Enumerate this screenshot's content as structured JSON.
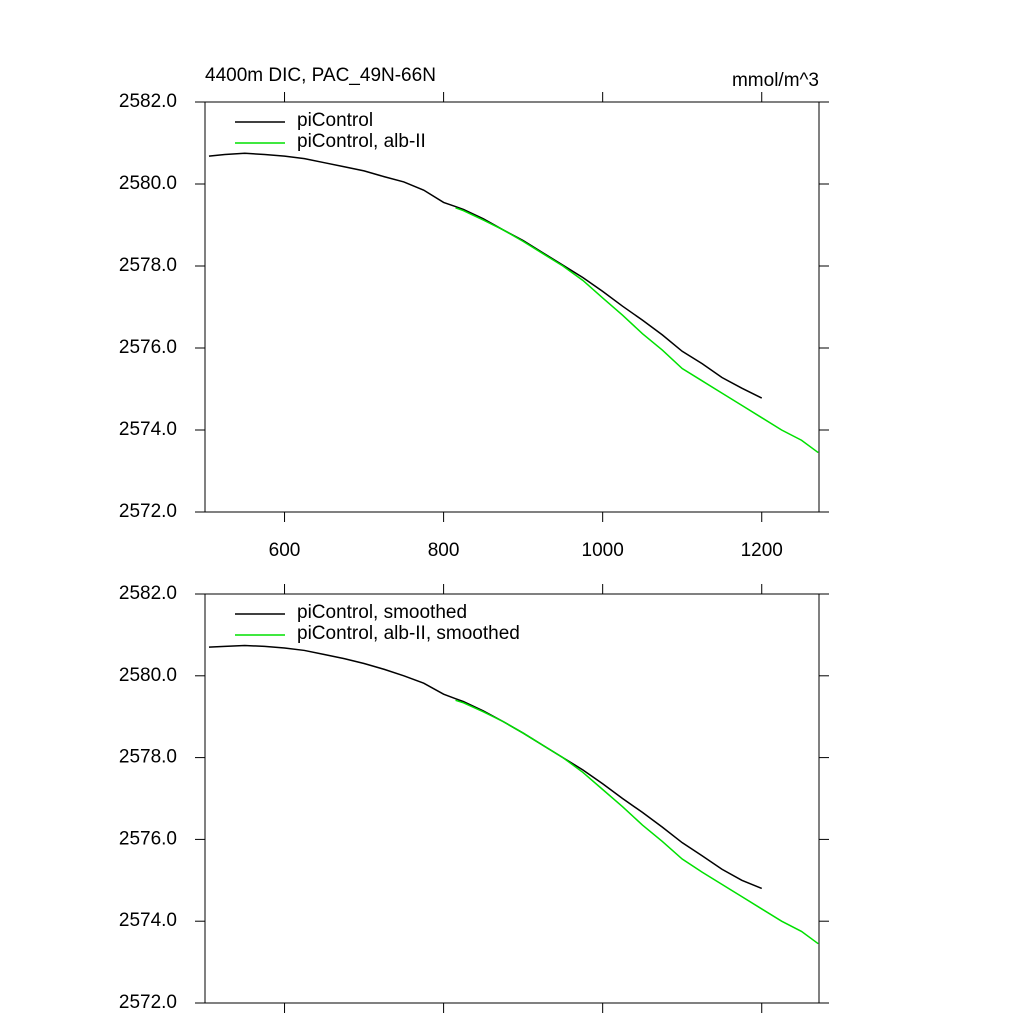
{
  "chart_data": [
    {
      "type": "line",
      "title": "4400m DIC, PAC_49N-66N",
      "units": "mmol/m^3",
      "x": [
        505,
        525,
        550,
        575,
        600,
        625,
        650,
        675,
        700,
        725,
        750,
        775,
        800,
        815,
        825,
        850,
        875,
        900,
        925,
        950,
        975,
        1000,
        1025,
        1050,
        1075,
        1100,
        1125,
        1150,
        1175,
        1200,
        1225,
        1250,
        1271
      ],
      "series": [
        {
          "name": "piControl",
          "color": "#000000",
          "values": [
            2580.68,
            2580.72,
            2580.75,
            2580.72,
            2580.68,
            2580.62,
            2580.52,
            2580.42,
            2580.32,
            2580.18,
            2580.05,
            2579.85,
            2579.55,
            2579.45,
            2579.38,
            2579.15,
            2578.88,
            2578.62,
            2578.32,
            2578.02,
            2577.72,
            2577.38,
            2577.02,
            2576.68,
            2576.32,
            2575.92,
            2575.62,
            2575.28,
            2575.02,
            2574.78,
            null,
            null,
            null
          ]
        },
        {
          "name": "piControl, alb-II",
          "color": "#00e000",
          "values": [
            null,
            null,
            null,
            null,
            null,
            null,
            null,
            null,
            null,
            null,
            null,
            null,
            null,
            2579.42,
            2579.35,
            2579.12,
            2578.88,
            2578.6,
            2578.3,
            2578.0,
            2577.65,
            2577.22,
            2576.8,
            2576.35,
            2575.95,
            2575.5,
            2575.2,
            2574.9,
            2574.6,
            2574.3,
            2574.0,
            2573.75,
            2573.45
          ]
        }
      ],
      "xlim": [
        500,
        1272
      ],
      "ylim": [
        2572,
        2582
      ],
      "xticks": [
        600,
        800,
        1000,
        1200
      ],
      "show_xtick_labels": true,
      "yticks": [
        {
          "value": 2572,
          "label": "2572.0"
        },
        {
          "value": 2574,
          "label": "2574.0"
        },
        {
          "value": 2576,
          "label": "2576.0"
        },
        {
          "value": 2578,
          "label": "2578.0"
        },
        {
          "value": 2580,
          "label": "2580.0"
        },
        {
          "value": 2582,
          "label": "2582.0"
        }
      ]
    },
    {
      "type": "line",
      "x": [
        505,
        525,
        550,
        575,
        600,
        625,
        650,
        675,
        700,
        725,
        750,
        775,
        800,
        815,
        825,
        850,
        875,
        900,
        925,
        950,
        975,
        1000,
        1025,
        1050,
        1075,
        1100,
        1125,
        1150,
        1175,
        1200,
        1225,
        1250,
        1271
      ],
      "series": [
        {
          "name": "piControl, smoothed",
          "color": "#000000",
          "values": [
            2580.7,
            2580.72,
            2580.74,
            2580.72,
            2580.68,
            2580.62,
            2580.52,
            2580.42,
            2580.3,
            2580.16,
            2580.0,
            2579.82,
            2579.55,
            2579.44,
            2579.37,
            2579.14,
            2578.88,
            2578.6,
            2578.3,
            2578.0,
            2577.7,
            2577.36,
            2577.0,
            2576.66,
            2576.3,
            2575.92,
            2575.6,
            2575.27,
            2575.0,
            2574.8,
            null,
            null,
            null
          ]
        },
        {
          "name": "piControl, alb-II, smoothed",
          "color": "#00e000",
          "values": [
            null,
            null,
            null,
            null,
            null,
            null,
            null,
            null,
            null,
            null,
            null,
            null,
            null,
            2579.4,
            2579.34,
            2579.12,
            2578.88,
            2578.6,
            2578.3,
            2578.0,
            2577.64,
            2577.22,
            2576.8,
            2576.35,
            2575.95,
            2575.52,
            2575.2,
            2574.9,
            2574.6,
            2574.3,
            2574.0,
            2573.75,
            2573.45
          ]
        }
      ],
      "xlim": [
        500,
        1272
      ],
      "ylim": [
        2572,
        2582
      ],
      "xticks": [
        600,
        800,
        1000,
        1200
      ],
      "show_xtick_labels": false,
      "yticks": [
        {
          "value": 2572,
          "label": "2572.0"
        },
        {
          "value": 2574,
          "label": "2574.0"
        },
        {
          "value": 2576,
          "label": "2576.0"
        },
        {
          "value": 2578,
          "label": "2578.0"
        },
        {
          "value": 2580,
          "label": "2580.0"
        },
        {
          "value": 2582,
          "label": "2582.0"
        }
      ]
    }
  ]
}
